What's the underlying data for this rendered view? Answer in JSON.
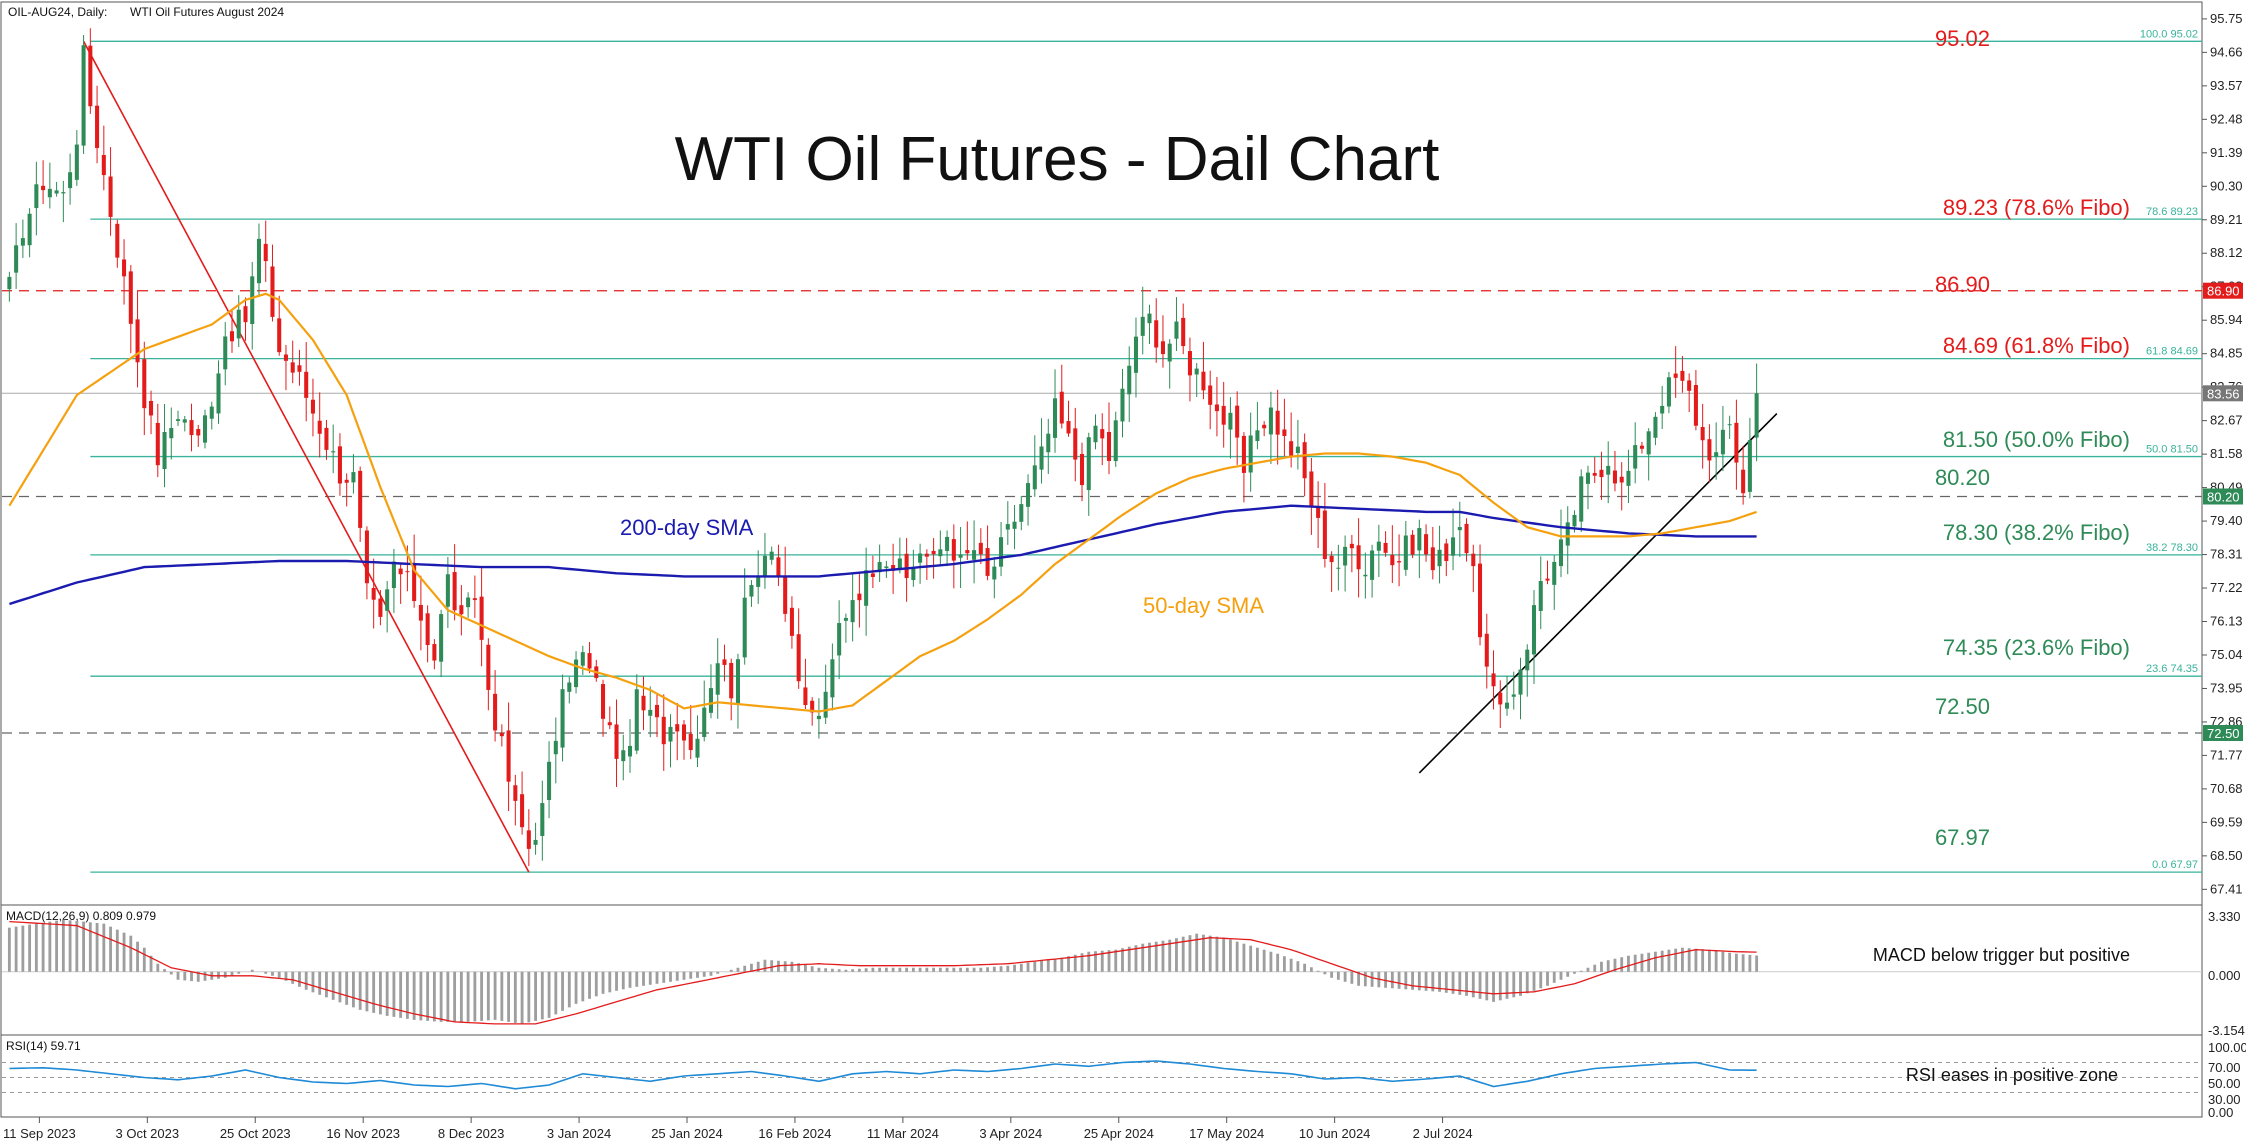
{
  "header": {
    "instrument": "OIL-AUG24, Daily:",
    "description": "WTI Oil Futures August 2024"
  },
  "title": "WTI Oil Futures - Dail Chart",
  "colors": {
    "bull": "#2e8b57",
    "bear": "#e31b1b",
    "sma50": "#f5a10f",
    "sma200": "#1b1bb0",
    "fibo": "#39b39b",
    "resistance": "#e31b1b",
    "macd_hist": "#9e9e9e",
    "macd_signal": "#e31b1b",
    "rsi": "#1f8ad6",
    "green_text": "#2e8b57",
    "red_text": "#e31b1b"
  },
  "price_axis": {
    "ticks": [
      "95.75",
      "94.66",
      "93.57",
      "92.48",
      "91.39",
      "90.30",
      "89.21",
      "88.12",
      "87.03",
      "85.94",
      "84.85",
      "83.76",
      "82.67",
      "81.58",
      "80.49",
      "79.40",
      "78.31",
      "77.22",
      "76.13",
      "75.04",
      "73.95",
      "72.86",
      "71.77",
      "70.68",
      "69.59",
      "68.50",
      "67.41"
    ],
    "tags": {
      "r8690": "86.90",
      "last": "83.56",
      "s8020": "80.20",
      "s7250": "72.50"
    }
  },
  "fibo_labels": {
    "f100": "100.0 95.02",
    "f786": "78.6 89.23",
    "f618": "61.8 84.69",
    "f500": "50.0 81.50",
    "f382": "38.2 78.30",
    "f236": "23.6 74.35",
    "f0": "0.0 67.97"
  },
  "annotations": {
    "l9502": "95.02",
    "l8923": "89.23 (78.6% Fibo)",
    "l8690": "86.90",
    "l8469": "84.69 (61.8% Fibo)",
    "l8150": "81.50 (50.0% Fibo)",
    "l8020": "80.20",
    "l7830": "78.30 (38.2% Fibo)",
    "l7435": "74.35 (23.6% Fibo)",
    "l7250": "72.50",
    "l6797": "67.97",
    "sma200": "200-day SMA",
    "sma50": "50-day SMA",
    "macd_note": "MACD below trigger but positive",
    "rsi_note": "RSI eases in positive zone"
  },
  "macd": {
    "label": "MACD(12,26,9) 0.809 0.979",
    "ticks": [
      "3.330",
      "0.000",
      "-3.154"
    ]
  },
  "rsi": {
    "label": "RSI(14) 59.71",
    "ticks": [
      "100.00",
      "70.00",
      "50.00",
      "30.00",
      "0.00"
    ]
  },
  "x_axis": {
    "labels": [
      "11 Sep 2023",
      "3 Oct 2023",
      "25 Oct 2023",
      "16 Nov 2023",
      "8 Dec 2023",
      "3 Jan 2024",
      "25 Jan 2024",
      "16 Feb 2024",
      "11 Mar 2024",
      "3 Apr 2024",
      "25 Apr 2024",
      "17 May 2024",
      "10 Jun 2024",
      "2 Jul 2024"
    ]
  },
  "chart_data": {
    "type": "candlestick",
    "x_labels": [
      "11 Sep 2023",
      "3 Oct 2023",
      "25 Oct 2023",
      "16 Nov 2023",
      "8 Dec 2023",
      "3 Jan 2024",
      "25 Jan 2024",
      "16 Feb 2024",
      "11 Mar 2024",
      "3 Apr 2024",
      "25 Apr 2024",
      "17 May 2024",
      "10 Jun 2024",
      "2 Jul 2024"
    ],
    "ylim": [
      66.9,
      96.3
    ],
    "close_path": [
      [
        0,
        87.0
      ],
      [
        2,
        89.0
      ],
      [
        5,
        90.5
      ],
      [
        8,
        90.0
      ],
      [
        10,
        92.0
      ],
      [
        11,
        94.5
      ],
      [
        12,
        93.0
      ],
      [
        15,
        89.5
      ],
      [
        18,
        86.0
      ],
      [
        20,
        83.5
      ],
      [
        22,
        81.5
      ],
      [
        25,
        83.0
      ],
      [
        28,
        82.0
      ],
      [
        30,
        83.5
      ],
      [
        32,
        85.5
      ],
      [
        35,
        86.0
      ],
      [
        37,
        88.5
      ],
      [
        38,
        87.5
      ],
      [
        40,
        85.0
      ],
      [
        43,
        84.0
      ],
      [
        46,
        82.5
      ],
      [
        49,
        81.0
      ],
      [
        51,
        80.8
      ],
      [
        53,
        77.0
      ],
      [
        55,
        76.0
      ],
      [
        57,
        78.0
      ],
      [
        60,
        77.0
      ],
      [
        63,
        75.0
      ],
      [
        65,
        77.5
      ],
      [
        67,
        76.0
      ],
      [
        69,
        77.0
      ],
      [
        71,
        74.0
      ],
      [
        73,
        72.0
      ],
      [
        75,
        70.0
      ],
      [
        77,
        68.8
      ],
      [
        79,
        70.0
      ],
      [
        81,
        72.5
      ],
      [
        83,
        74.5
      ],
      [
        85,
        75.0
      ],
      [
        87,
        74.0
      ],
      [
        89,
        72.5
      ],
      [
        91,
        71.5
      ],
      [
        93,
        73.5
      ],
      [
        95,
        73.0
      ],
      [
        97,
        72.5
      ],
      [
        99,
        73.0
      ],
      [
        101,
        72.0
      ],
      [
        103,
        73.5
      ],
      [
        105,
        75.0
      ],
      [
        107,
        74.0
      ],
      [
        109,
        76.5
      ],
      [
        111,
        78.0
      ],
      [
        113,
        78.8
      ],
      [
        115,
        76.5
      ],
      [
        117,
        74.0
      ],
      [
        119,
        73.0
      ],
      [
        121,
        73.5
      ],
      [
        123,
        76.0
      ],
      [
        125,
        77.0
      ],
      [
        127,
        77.5
      ],
      [
        129,
        78.5
      ],
      [
        131,
        78.0
      ],
      [
        133,
        77.5
      ],
      [
        135,
        78.5
      ],
      [
        137,
        78.0
      ],
      [
        139,
        79.0
      ],
      [
        141,
        78.0
      ],
      [
        143,
        78.5
      ],
      [
        145,
        77.5
      ],
      [
        147,
        78.5
      ],
      [
        149,
        79.5
      ],
      [
        151,
        80.5
      ],
      [
        153,
        81.5
      ],
      [
        155,
        83.0
      ],
      [
        157,
        82.0
      ],
      [
        159,
        81.0
      ],
      [
        161,
        82.5
      ],
      [
        163,
        81.5
      ],
      [
        165,
        83.5
      ],
      [
        167,
        85.5
      ],
      [
        169,
        86.0
      ],
      [
        171,
        85.0
      ],
      [
        173,
        85.5
      ],
      [
        175,
        84.5
      ],
      [
        177,
        84.0
      ],
      [
        179,
        83.0
      ],
      [
        181,
        82.5
      ],
      [
        183,
        81.0
      ],
      [
        185,
        82.5
      ],
      [
        187,
        83.0
      ],
      [
        189,
        82.0
      ],
      [
        191,
        81.5
      ],
      [
        193,
        80.0
      ],
      [
        195,
        78.5
      ],
      [
        197,
        78.0
      ],
      [
        199,
        78.5
      ],
      [
        201,
        78.0
      ],
      [
        203,
        79.0
      ],
      [
        205,
        78.0
      ],
      [
        207,
        78.5
      ],
      [
        209,
        79.0
      ],
      [
        211,
        77.8
      ],
      [
        213,
        78.5
      ],
      [
        215,
        79.5
      ],
      [
        217,
        77.5
      ],
      [
        219,
        74.5
      ],
      [
        221,
        73.0
      ],
      [
        223,
        74.0
      ],
      [
        225,
        75.5
      ],
      [
        227,
        77.5
      ],
      [
        229,
        78.0
      ],
      [
        231,
        79.0
      ],
      [
        233,
        80.5
      ],
      [
        235,
        81.0
      ],
      [
        237,
        81.5
      ],
      [
        239,
        80.5
      ],
      [
        241,
        81.5
      ],
      [
        243,
        82.5
      ],
      [
        245,
        83.5
      ],
      [
        247,
        84.0
      ],
      [
        249,
        83.5
      ],
      [
        251,
        82.0
      ],
      [
        253,
        81.5
      ],
      [
        255,
        82.5
      ],
      [
        257,
        80.5
      ],
      [
        259,
        83.56
      ]
    ],
    "sma50_path": [
      [
        0,
        79.9
      ],
      [
        10,
        83.5
      ],
      [
        20,
        85.0
      ],
      [
        30,
        85.8
      ],
      [
        35,
        86.6
      ],
      [
        38,
        86.8
      ],
      [
        40,
        86.6
      ],
      [
        45,
        85.3
      ],
      [
        50,
        83.5
      ],
      [
        55,
        80.5
      ],
      [
        60,
        77.8
      ],
      [
        65,
        76.5
      ],
      [
        70,
        76.0
      ],
      [
        75,
        75.5
      ],
      [
        80,
        75.0
      ],
      [
        85,
        74.6
      ],
      [
        90,
        74.3
      ],
      [
        95,
        73.9
      ],
      [
        100,
        73.3
      ],
      [
        105,
        73.5
      ],
      [
        110,
        73.4
      ],
      [
        115,
        73.3
      ],
      [
        120,
        73.2
      ],
      [
        125,
        73.4
      ],
      [
        130,
        74.2
      ],
      [
        135,
        75.0
      ],
      [
        140,
        75.5
      ],
      [
        145,
        76.2
      ],
      [
        150,
        77.0
      ],
      [
        155,
        78.0
      ],
      [
        160,
        78.8
      ],
      [
        165,
        79.6
      ],
      [
        170,
        80.3
      ],
      [
        175,
        80.8
      ],
      [
        180,
        81.1
      ],
      [
        185,
        81.3
      ],
      [
        190,
        81.5
      ],
      [
        195,
        81.6
      ],
      [
        200,
        81.6
      ],
      [
        205,
        81.5
      ],
      [
        210,
        81.3
      ],
      [
        215,
        80.9
      ],
      [
        220,
        80.0
      ],
      [
        225,
        79.2
      ],
      [
        230,
        78.9
      ],
      [
        235,
        78.9
      ],
      [
        240,
        78.9
      ],
      [
        245,
        79.0
      ],
      [
        250,
        79.2
      ],
      [
        255,
        79.4
      ],
      [
        259,
        79.7
      ]
    ],
    "sma200_path": [
      [
        0,
        76.7
      ],
      [
        10,
        77.4
      ],
      [
        20,
        77.9
      ],
      [
        30,
        78.0
      ],
      [
        40,
        78.1
      ],
      [
        50,
        78.1
      ],
      [
        60,
        78.0
      ],
      [
        70,
        77.9
      ],
      [
        80,
        77.9
      ],
      [
        90,
        77.7
      ],
      [
        100,
        77.6
      ],
      [
        110,
        77.6
      ],
      [
        120,
        77.6
      ],
      [
        130,
        77.8
      ],
      [
        140,
        78.0
      ],
      [
        150,
        78.3
      ],
      [
        160,
        78.8
      ],
      [
        170,
        79.3
      ],
      [
        180,
        79.7
      ],
      [
        190,
        79.9
      ],
      [
        200,
        79.8
      ],
      [
        210,
        79.7
      ],
      [
        215,
        79.7
      ],
      [
        220,
        79.5
      ],
      [
        230,
        79.2
      ],
      [
        240,
        79.0
      ],
      [
        250,
        78.9
      ],
      [
        259,
        78.9
      ]
    ],
    "fibonacci": [
      {
        "level": "100.0",
        "price": 95.02
      },
      {
        "level": "78.6",
        "price": 89.23
      },
      {
        "level": "61.8",
        "price": 84.69
      },
      {
        "level": "50.0",
        "price": 81.5
      },
      {
        "level": "38.2",
        "price": 78.3
      },
      {
        "level": "23.6",
        "price": 74.35
      },
      {
        "level": "0.0",
        "price": 67.97
      }
    ],
    "horizontal_levels": [
      86.9,
      80.2,
      72.5
    ],
    "macd_hist_path": [
      [
        0,
        2.2
      ],
      [
        8,
        2.6
      ],
      [
        14,
        2.4
      ],
      [
        18,
        1.8
      ],
      [
        20,
        1.2
      ],
      [
        22,
        0.4
      ],
      [
        25,
        -0.4
      ],
      [
        28,
        -0.5
      ],
      [
        32,
        -0.3
      ],
      [
        36,
        0.1
      ],
      [
        40,
        -0.3
      ],
      [
        44,
        -0.9
      ],
      [
        48,
        -1.4
      ],
      [
        52,
        -1.9
      ],
      [
        56,
        -2.2
      ],
      [
        60,
        -2.4
      ],
      [
        64,
        -2.5
      ],
      [
        68,
        -2.5
      ],
      [
        72,
        -2.4
      ],
      [
        76,
        -2.6
      ],
      [
        80,
        -2.3
      ],
      [
        84,
        -1.6
      ],
      [
        88,
        -1.1
      ],
      [
        92,
        -0.8
      ],
      [
        96,
        -0.6
      ],
      [
        100,
        -0.4
      ],
      [
        104,
        -0.2
      ],
      [
        108,
        0.2
      ],
      [
        112,
        0.6
      ],
      [
        116,
        0.5
      ],
      [
        120,
        0.2
      ],
      [
        124,
        0.1
      ],
      [
        128,
        0.2
      ],
      [
        132,
        0.2
      ],
      [
        136,
        0.2
      ],
      [
        140,
        0.2
      ],
      [
        144,
        0.2
      ],
      [
        148,
        0.3
      ],
      [
        152,
        0.5
      ],
      [
        156,
        0.7
      ],
      [
        160,
        1.0
      ],
      [
        164,
        1.1
      ],
      [
        168,
        1.4
      ],
      [
        172,
        1.6
      ],
      [
        176,
        1.9
      ],
      [
        180,
        1.7
      ],
      [
        184,
        1.3
      ],
      [
        188,
        0.9
      ],
      [
        192,
        0.4
      ],
      [
        196,
        -0.3
      ],
      [
        200,
        -0.7
      ],
      [
        204,
        -0.8
      ],
      [
        208,
        -0.9
      ],
      [
        212,
        -1.0
      ],
      [
        216,
        -1.2
      ],
      [
        220,
        -1.5
      ],
      [
        224,
        -1.2
      ],
      [
        228,
        -0.7
      ],
      [
        232,
        -0.1
      ],
      [
        236,
        0.5
      ],
      [
        240,
        0.8
      ],
      [
        244,
        1.0
      ],
      [
        248,
        1.2
      ],
      [
        252,
        1.1
      ],
      [
        256,
        0.9
      ],
      [
        259,
        0.81
      ]
    ],
    "macd_signal_path": [
      [
        0,
        2.5
      ],
      [
        10,
        2.3
      ],
      [
        18,
        1.2
      ],
      [
        24,
        0.2
      ],
      [
        30,
        -0.2
      ],
      [
        36,
        -0.2
      ],
      [
        42,
        -0.4
      ],
      [
        48,
        -1.0
      ],
      [
        54,
        -1.6
      ],
      [
        60,
        -2.1
      ],
      [
        66,
        -2.5
      ],
      [
        72,
        -2.6
      ],
      [
        78,
        -2.6
      ],
      [
        84,
        -2.1
      ],
      [
        90,
        -1.5
      ],
      [
        96,
        -0.9
      ],
      [
        102,
        -0.5
      ],
      [
        108,
        -0.1
      ],
      [
        114,
        0.3
      ],
      [
        120,
        0.4
      ],
      [
        126,
        0.3
      ],
      [
        132,
        0.3
      ],
      [
        140,
        0.3
      ],
      [
        148,
        0.4
      ],
      [
        154,
        0.6
      ],
      [
        160,
        0.8
      ],
      [
        166,
        1.1
      ],
      [
        172,
        1.4
      ],
      [
        178,
        1.7
      ],
      [
        184,
        1.6
      ],
      [
        190,
        1.1
      ],
      [
        196,
        0.4
      ],
      [
        202,
        -0.3
      ],
      [
        208,
        -0.7
      ],
      [
        214,
        -0.9
      ],
      [
        220,
        -1.1
      ],
      [
        226,
        -1.0
      ],
      [
        232,
        -0.6
      ],
      [
        238,
        0.1
      ],
      [
        244,
        0.7
      ],
      [
        250,
        1.1
      ],
      [
        256,
        1.0
      ],
      [
        259,
        0.98
      ]
    ],
    "rsi_path": [
      [
        0,
        62
      ],
      [
        5,
        63
      ],
      [
        10,
        60
      ],
      [
        15,
        55
      ],
      [
        20,
        50
      ],
      [
        25,
        47
      ],
      [
        30,
        52
      ],
      [
        35,
        60
      ],
      [
        40,
        50
      ],
      [
        45,
        44
      ],
      [
        50,
        42
      ],
      [
        55,
        46
      ],
      [
        60,
        40
      ],
      [
        65,
        38
      ],
      [
        70,
        42
      ],
      [
        75,
        35
      ],
      [
        80,
        40
      ],
      [
        85,
        55
      ],
      [
        90,
        50
      ],
      [
        95,
        45
      ],
      [
        100,
        52
      ],
      [
        105,
        55
      ],
      [
        110,
        58
      ],
      [
        115,
        52
      ],
      [
        120,
        45
      ],
      [
        125,
        55
      ],
      [
        130,
        58
      ],
      [
        135,
        55
      ],
      [
        140,
        60
      ],
      [
        145,
        58
      ],
      [
        150,
        62
      ],
      [
        155,
        68
      ],
      [
        160,
        65
      ],
      [
        165,
        70
      ],
      [
        170,
        72
      ],
      [
        175,
        68
      ],
      [
        180,
        62
      ],
      [
        185,
        58
      ],
      [
        190,
        55
      ],
      [
        195,
        48
      ],
      [
        200,
        50
      ],
      [
        205,
        45
      ],
      [
        210,
        48
      ],
      [
        215,
        52
      ],
      [
        220,
        38
      ],
      [
        225,
        45
      ],
      [
        230,
        55
      ],
      [
        235,
        62
      ],
      [
        240,
        65
      ],
      [
        245,
        68
      ],
      [
        250,
        70
      ],
      [
        255,
        60
      ],
      [
        259,
        59.7
      ]
    ]
  }
}
